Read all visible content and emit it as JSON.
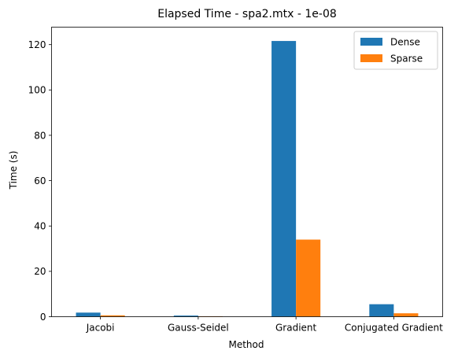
{
  "chart_data": {
    "type": "bar",
    "title": "Elapsed Time - spa2.mtx - 1e-08",
    "xlabel": "Method",
    "ylabel": "Time (s)",
    "categories": [
      "Jacobi",
      "Gauss-Seidel",
      "Gradient",
      "Conjugated Gradient"
    ],
    "series": [
      {
        "name": "Dense",
        "color": "#1f77b4",
        "values": [
          1.8,
          0.5,
          121.6,
          5.5
        ]
      },
      {
        "name": "Sparse",
        "color": "#ff7f0e",
        "values": [
          0.6,
          0.2,
          34.0,
          1.5
        ]
      }
    ],
    "ylim": [
      0,
      127.7
    ],
    "yticks": [
      0,
      20,
      40,
      60,
      80,
      100,
      120
    ],
    "grid": false,
    "legend_position": "top-right"
  }
}
